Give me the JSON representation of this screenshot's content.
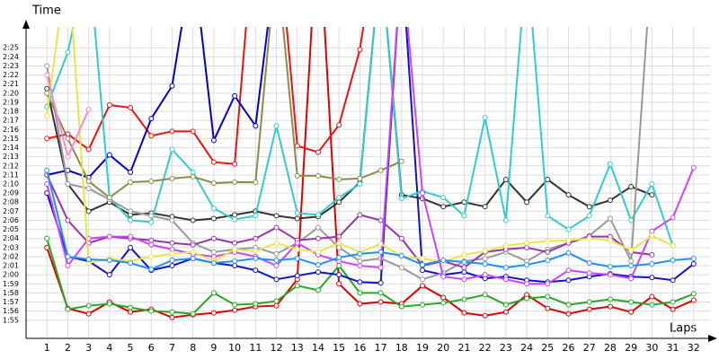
{
  "chart_data": {
    "type": "line",
    "x_label": "Laps",
    "y_label": "Time",
    "grid": true,
    "xlim": [
      0,
      33
    ],
    "ylim": [
      113,
      147
    ],
    "x": [
      1,
      2,
      3,
      4,
      5,
      6,
      7,
      8,
      9,
      10,
      11,
      12,
      13,
      14,
      15,
      16,
      17,
      18,
      19,
      20,
      21,
      22,
      23,
      24,
      25,
      26,
      27,
      28,
      29,
      30,
      31,
      32
    ],
    "xticks": [
      1,
      2,
      3,
      4,
      5,
      6,
      7,
      8,
      9,
      10,
      11,
      12,
      13,
      14,
      15,
      16,
      17,
      18,
      19,
      20,
      21,
      22,
      23,
      24,
      25,
      26,
      27,
      28,
      29,
      30,
      31,
      32
    ],
    "yticks": [
      {
        "value": 115,
        "label": "1:55"
      },
      {
        "value": 116,
        "label": "1:56"
      },
      {
        "value": 117,
        "label": "1:57"
      },
      {
        "value": 118,
        "label": "1:58"
      },
      {
        "value": 119,
        "label": "1:59"
      },
      {
        "value": 120,
        "label": "2:00"
      },
      {
        "value": 121,
        "label": "2:01"
      },
      {
        "value": 122,
        "label": "2:02"
      },
      {
        "value": 123,
        "label": "2:03"
      },
      {
        "value": 124,
        "label": "2:04"
      },
      {
        "value": 125,
        "label": "2:05"
      },
      {
        "value": 126,
        "label": "2:06"
      },
      {
        "value": 127,
        "label": "2:07"
      },
      {
        "value": 128,
        "label": "2:08"
      },
      {
        "value": 129,
        "label": "2:09"
      },
      {
        "value": 130,
        "label": "2:10"
      },
      {
        "value": 131,
        "label": "2:11"
      },
      {
        "value": 132,
        "label": "2:12"
      },
      {
        "value": 133,
        "label": "2:13"
      },
      {
        "value": 134,
        "label": "2:14"
      },
      {
        "value": 135,
        "label": "2:15"
      },
      {
        "value": 136,
        "label": "2:16"
      },
      {
        "value": 137,
        "label": "2:17"
      },
      {
        "value": 138,
        "label": "2:18"
      },
      {
        "value": 139,
        "label": "2:19"
      },
      {
        "value": 140,
        "label": "2:20"
      },
      {
        "value": 141,
        "label": "2:21"
      },
      {
        "value": 142,
        "label": "2:22"
      },
      {
        "value": 143,
        "label": "2:23"
      },
      {
        "value": 144,
        "label": "2:24"
      },
      {
        "value": 145,
        "label": "2:25"
      }
    ],
    "series": [
      {
        "color": "#e00000",
        "values": [
          123,
          116.3,
          115.7,
          117,
          115.9,
          116.2,
          115.3,
          115.6,
          115.8,
          116.1,
          116.5,
          116.6,
          119.5,
          160,
          119,
          116.8,
          117,
          116.8,
          118.8,
          117.5,
          115.8,
          115.5,
          115.9,
          117.8,
          116.3,
          115.7,
          116.2,
          116.5,
          115.9,
          117.6,
          116.2,
          117.2
        ]
      },
      {
        "color": "#ee1111",
        "values": [
          135,
          135.5,
          133.8,
          138.7,
          138.4,
          135.3,
          135.8,
          135.8,
          132.4,
          132.2,
          160,
          160,
          134.2,
          133.5,
          136.5,
          144.8,
          160,
          null,
          null,
          null,
          null,
          null,
          null,
          null,
          null,
          null,
          null,
          null,
          null,
          null,
          null,
          null
        ]
      },
      {
        "color": "#22aa22",
        "values": [
          124,
          116.2,
          116.6,
          116.8,
          116.4,
          116,
          115.9,
          115.7,
          118,
          116.7,
          116.8,
          117.1,
          118.8,
          118.3,
          121,
          118,
          118,
          116.5,
          116.7,
          116.9,
          117.3,
          117.8,
          116.7,
          117.4,
          117.6,
          116.7,
          117,
          117.3,
          117,
          116.7,
          117,
          117.9
        ]
      },
      {
        "color": "#0000cc",
        "values": [
          131,
          131.5,
          130.7,
          133.2,
          131.3,
          137.2,
          140.8,
          155,
          134.8,
          139.7,
          136.4,
          155,
          null,
          null,
          null,
          null,
          null,
          null,
          null,
          null,
          null,
          null,
          null,
          null,
          null,
          null,
          null,
          null,
          null,
          null,
          null,
          null
        ]
      },
      {
        "color": "#1010d0",
        "values": [
          129,
          122,
          121.5,
          120,
          123,
          120.5,
          121,
          121.8,
          121.3,
          121,
          120.5,
          119.5,
          119.9,
          120.3,
          120,
          119.2,
          119.1,
          155,
          120.5,
          120,
          120.3,
          119.6,
          119.8,
          119.4,
          119.2,
          119.4,
          119.8,
          120.1,
          119.8,
          119.7,
          119.4,
          121.2
        ]
      },
      {
        "color": "#333333",
        "values": [
          140.5,
          130,
          127,
          128,
          126.6,
          126.8,
          126.4,
          126,
          126.2,
          126.6,
          127,
          126.5,
          126.2,
          126.4,
          128,
          130.2,
          155,
          128.8,
          128.4,
          127.5,
          128,
          127.5,
          130.5,
          128,
          130.5,
          128.8,
          127.5,
          128.2,
          129.7,
          128.8,
          null,
          null
        ]
      },
      {
        "color": "#33cccc",
        "values": [
          138.5,
          144.5,
          155,
          128.5,
          126,
          125.8,
          133.8,
          131.3,
          127.3,
          126.1,
          126.5,
          136.4,
          126.8,
          126.6,
          128.5,
          130,
          155,
          128.4,
          129.2,
          128.5,
          126.5,
          137.3,
          126,
          155,
          126.5,
          125,
          126.5,
          132.2,
          126,
          130,
          123.2,
          null
        ]
      },
      {
        "color": "#999999",
        "values": [
          143,
          130,
          129.5,
          128.3,
          127,
          126.5,
          126,
          123.5,
          122.5,
          122.8,
          123,
          122.3,
          123.5,
          125.2,
          123,
          121.5,
          121.8,
          120.8,
          119.5,
          120.2,
          121.5,
          121.8,
          122.5,
          121.5,
          122.8,
          123.5,
          124.3,
          126.2,
          121.5,
          155,
          null,
          null
        ]
      },
      {
        "color": "#8b8b4b",
        "values": [
          140,
          135,
          130.3,
          128.5,
          130.2,
          130.3,
          130.6,
          130.8,
          130.1,
          130.2,
          130.2,
          155,
          130.9,
          130.9,
          130.5,
          130.6,
          131.5,
          132.5,
          null,
          null,
          null,
          null,
          null,
          null,
          null,
          null,
          null,
          null,
          null,
          null,
          null,
          null
        ]
      },
      {
        "color": "#9933aa",
        "values": [
          131,
          126,
          123.5,
          124.2,
          124,
          123.8,
          123.5,
          123.3,
          124,
          123.5,
          124,
          125.2,
          123.8,
          124,
          124.2,
          126.6,
          126,
          124,
          121,
          121.5,
          120.8,
          122.5,
          122.8,
          123,
          122.5,
          123.5,
          124.2,
          124.2,
          122.5,
          122.2,
          null,
          null
        ]
      },
      {
        "color": "#cc44ff",
        "values": [
          130,
          121,
          124,
          124.2,
          124.2,
          123.3,
          122.8,
          122.3,
          122,
          122.5,
          122,
          121,
          123.5,
          122.2,
          121.5,
          121,
          120.8,
          155,
          129,
          119.8,
          119.5,
          120,
          119.5,
          119,
          119,
          120.5,
          120.2,
          120,
          119.6,
          124.8,
          126.3,
          131.8
        ]
      },
      {
        "color": "#e6e64c",
        "values": [
          137.5,
          155,
          121.3,
          121.8,
          121.5,
          122,
          122.3,
          122.5,
          121.5,
          122.8,
          122.6,
          123.5,
          122.8,
          122.5,
          123.5,
          122.5,
          123.4,
          122,
          121.8,
          121.4,
          122.2,
          122.6,
          123.2,
          123.5,
          123.7,
          123.8,
          124,
          123.8,
          122.7,
          124.3,
          123.2,
          null
        ]
      },
      {
        "color": "#ff88cc",
        "values": [
          142,
          133,
          138.2,
          null,
          null,
          null,
          null,
          null,
          null,
          null,
          null,
          null,
          null,
          null,
          null,
          null,
          null,
          null,
          null,
          null,
          null,
          null,
          null,
          null,
          null,
          null,
          null,
          null,
          null,
          null,
          null,
          null
        ]
      },
      {
        "color": "#1f8fff",
        "values": [
          131.5,
          122,
          121.7,
          121.6,
          121.3,
          120.6,
          121.6,
          121.8,
          121.3,
          121.5,
          121.8,
          121.6,
          121.8,
          121.1,
          121.9,
          122.3,
          122.5,
          122.1,
          121.1,
          121.6,
          121.4,
          121.2,
          120.8,
          121.1,
          121.6,
          122.4,
          121.3,
          120.9,
          121,
          121.2,
          121.6,
          121.8
        ]
      }
    ]
  }
}
